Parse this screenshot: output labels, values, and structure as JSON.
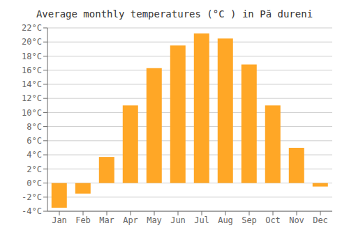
{
  "chart_data": {
    "type": "bar",
    "title": "Average monthly temperatures (°C ) in Pă dureni",
    "categories": [
      "Jan",
      "Feb",
      "Mar",
      "Apr",
      "May",
      "Jun",
      "Jul",
      "Aug",
      "Sep",
      "Oct",
      "Nov",
      "Dec"
    ],
    "values": [
      -3.5,
      -1.5,
      3.7,
      11.0,
      16.3,
      19.5,
      21.2,
      20.5,
      16.8,
      11.0,
      5.0,
      -0.5
    ],
    "color": "#FFA726",
    "ylim": [
      -4,
      22
    ],
    "yticks": [
      {
        "value": -4,
        "label": "-4°C"
      },
      {
        "value": -2,
        "label": "-2°C"
      },
      {
        "value": 0,
        "label": "0°C"
      },
      {
        "value": 2,
        "label": "2°C"
      },
      {
        "value": 4,
        "label": "4°C"
      },
      {
        "value": 6,
        "label": "6°C"
      },
      {
        "value": 8,
        "label": "8°C"
      },
      {
        "value": 10,
        "label": "10°C"
      },
      {
        "value": 12,
        "label": "12°C"
      },
      {
        "value": 14,
        "label": "14°C"
      },
      {
        "value": 16,
        "label": "16°C"
      },
      {
        "value": 18,
        "label": "18°C"
      },
      {
        "value": 20,
        "label": "20°C"
      },
      {
        "value": 22,
        "label": "22°C"
      }
    ],
    "grid": true
  }
}
